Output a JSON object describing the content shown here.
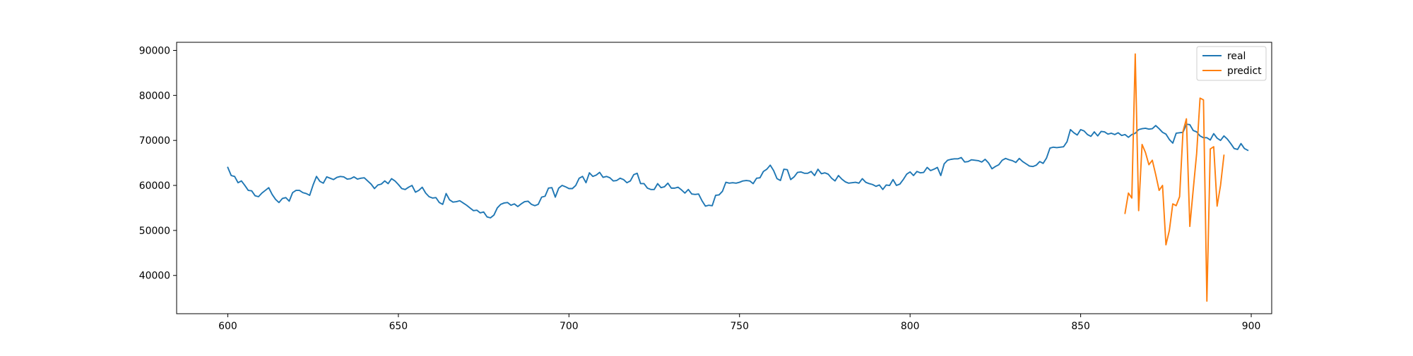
{
  "chart_data": {
    "type": "line",
    "title": "",
    "xlabel": "",
    "ylabel": "",
    "xlim": [
      585,
      906
    ],
    "ylim": [
      31500,
      91800
    ],
    "xticks": [
      600,
      650,
      700,
      750,
      800,
      850,
      900
    ],
    "yticks": [
      40000,
      50000,
      60000,
      70000,
      80000,
      90000
    ],
    "xtick_labels": [
      "600",
      "650",
      "700",
      "750",
      "800",
      "850",
      "900"
    ],
    "ytick_labels": [
      "40000",
      "50000",
      "60000",
      "70000",
      "80000",
      "90000"
    ],
    "grid": false,
    "legend_position": "top-right",
    "series": [
      {
        "name": "real",
        "color": "#1f77b4",
        "x_start": 600,
        "values": [
          64000,
          62200,
          62000,
          60600,
          61000,
          60000,
          58900,
          58800,
          57700,
          57500,
          58300,
          58900,
          59500,
          58000,
          56900,
          56200,
          57100,
          57300,
          56500,
          58400,
          58900,
          58900,
          58400,
          58200,
          57800,
          60100,
          62000,
          60900,
          60500,
          61900,
          61600,
          61300,
          61800,
          62000,
          61900,
          61400,
          61500,
          61900,
          61400,
          61600,
          61700,
          61000,
          60300,
          59300,
          60100,
          60300,
          61000,
          60400,
          61500,
          61000,
          60200,
          59300,
          59100,
          59600,
          60000,
          58500,
          58900,
          59600,
          58300,
          57500,
          57200,
          57300,
          56200,
          55800,
          58200,
          56800,
          56300,
          56400,
          56600,
          56100,
          55600,
          55000,
          54400,
          54500,
          53900,
          54100,
          53000,
          52800,
          53400,
          55000,
          55800,
          56100,
          56200,
          55600,
          55900,
          55300,
          55900,
          56400,
          56500,
          55800,
          55500,
          55800,
          57400,
          57600,
          59400,
          59500,
          57400,
          59400,
          60000,
          59700,
          59300,
          59300,
          60000,
          61600,
          62000,
          60600,
          62800,
          62000,
          62300,
          62900,
          61800,
          62000,
          61700,
          61000,
          61100,
          61600,
          61300,
          60600,
          61000,
          62400,
          62700,
          60400,
          60400,
          59400,
          59100,
          59100,
          60400,
          59500,
          59700,
          60500,
          59400,
          59400,
          59600,
          59000,
          58300,
          59100,
          58100,
          58000,
          58100,
          56600,
          55400,
          55600,
          55500,
          57800,
          57900,
          58700,
          60700,
          60500,
          60600,
          60500,
          60700,
          61000,
          61100,
          61000,
          60400,
          61600,
          61700,
          63100,
          63600,
          64500,
          63300,
          61500,
          61100,
          63600,
          63500,
          61300,
          61900,
          62900,
          63000,
          62700,
          62700,
          63100,
          62200,
          63600,
          62600,
          62800,
          62500,
          61600,
          61000,
          62200,
          61400,
          60800,
          60500,
          60600,
          60700,
          60500,
          61500,
          60700,
          60400,
          60200,
          59800,
          60100,
          59100,
          60100,
          60000,
          61300,
          60000,
          60300,
          61300,
          62500,
          63000,
          62200,
          63100,
          62800,
          62900,
          64000,
          63300,
          63600,
          64000,
          62200,
          64800,
          65600,
          65800,
          65900,
          65900,
          66200,
          65200,
          65300,
          65700,
          65600,
          65500,
          65200,
          65800,
          65000,
          63700,
          64200,
          64600,
          65600,
          66000,
          65700,
          65500,
          65100,
          66000,
          65300,
          64800,
          64300,
          64200,
          64500,
          65300,
          64900,
          66100,
          68300,
          68500,
          68400,
          68500,
          68600,
          69700,
          72400,
          71700,
          71200,
          72400,
          72100,
          71300,
          70900,
          71900,
          71000,
          72000,
          71900,
          71400,
          71600,
          71300,
          71700,
          71100,
          71300,
          70700,
          71300,
          71600,
          72400,
          72600,
          72700,
          72500,
          72600,
          73300,
          72600,
          71800,
          71400,
          70200,
          69400,
          71600,
          71700,
          71800,
          73600,
          73500,
          72200,
          71900,
          71000,
          70600,
          70600,
          70100,
          71500,
          70500,
          70000,
          71000,
          70300,
          69300,
          68200,
          68000,
          69300,
          68200,
          67800
        ]
      },
      {
        "name": "predict",
        "color": "#ff7f0e",
        "x_start": 863,
        "values": [
          53800,
          58300,
          57200,
          89200,
          54400,
          69100,
          67300,
          64600,
          65600,
          62400,
          58900,
          60000,
          46800,
          50000,
          55900,
          55500,
          57500,
          72000,
          74800,
          50900,
          59100,
          67100,
          79400,
          79000,
          34300,
          68100,
          68600,
          55400,
          60000,
          66700
        ]
      }
    ]
  }
}
